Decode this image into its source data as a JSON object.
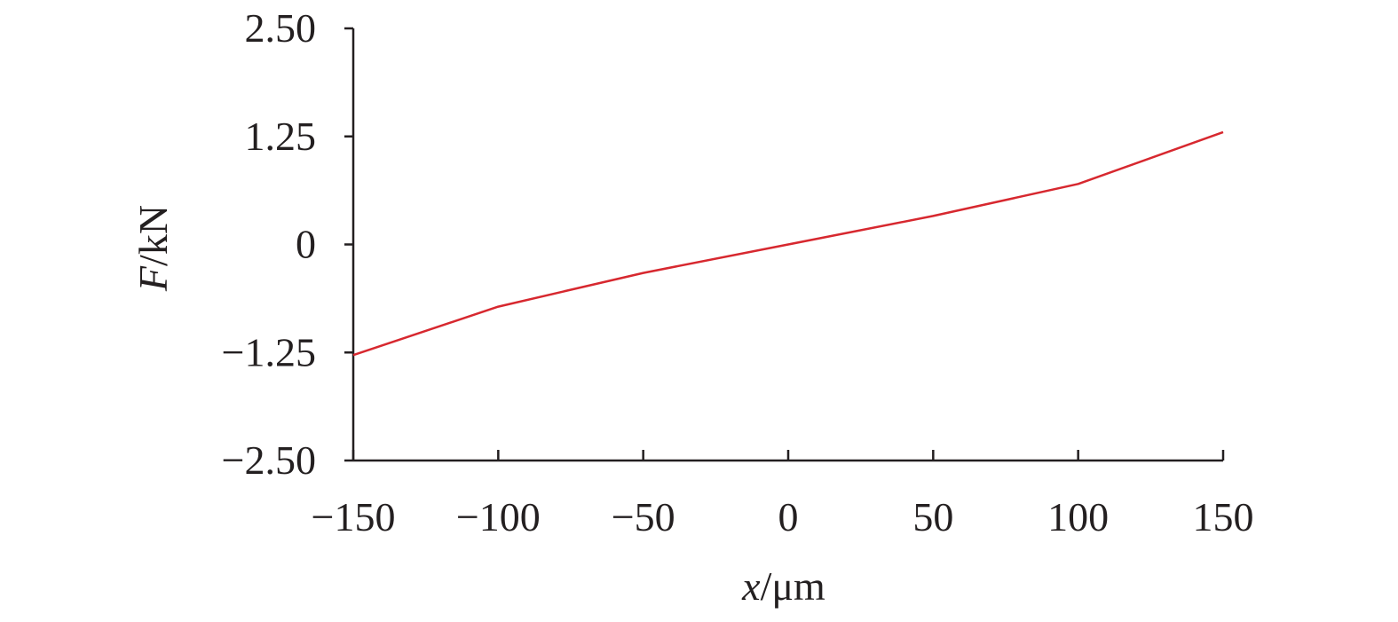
{
  "chart_data": {
    "type": "line",
    "title": "",
    "xlabel": {
      "var": "x",
      "unit": "/μm"
    },
    "ylabel": {
      "var": "F",
      "unit": "/kN"
    },
    "xlim": [
      -150,
      150
    ],
    "ylim": [
      -2.5,
      2.5
    ],
    "x_ticks": [
      "−150",
      "−100",
      "−50",
      "0",
      "50",
      "100",
      "150"
    ],
    "x_tick_values": [
      -150,
      -100,
      -50,
      0,
      50,
      100,
      150
    ],
    "y_ticks": [
      "2.50",
      "1.25",
      "0",
      "−1.25",
      "−2.50"
    ],
    "y_tick_values": [
      2.5,
      1.25,
      0,
      -1.25,
      -2.5
    ],
    "grid": false,
    "series": [
      {
        "color": "#d7282f",
        "x": [
          -150,
          -100,
          -50,
          0,
          50,
          100,
          150
        ],
        "y": [
          -1.28,
          -0.72,
          -0.33,
          0,
          0.33,
          0.7,
          1.3
        ]
      }
    ]
  }
}
